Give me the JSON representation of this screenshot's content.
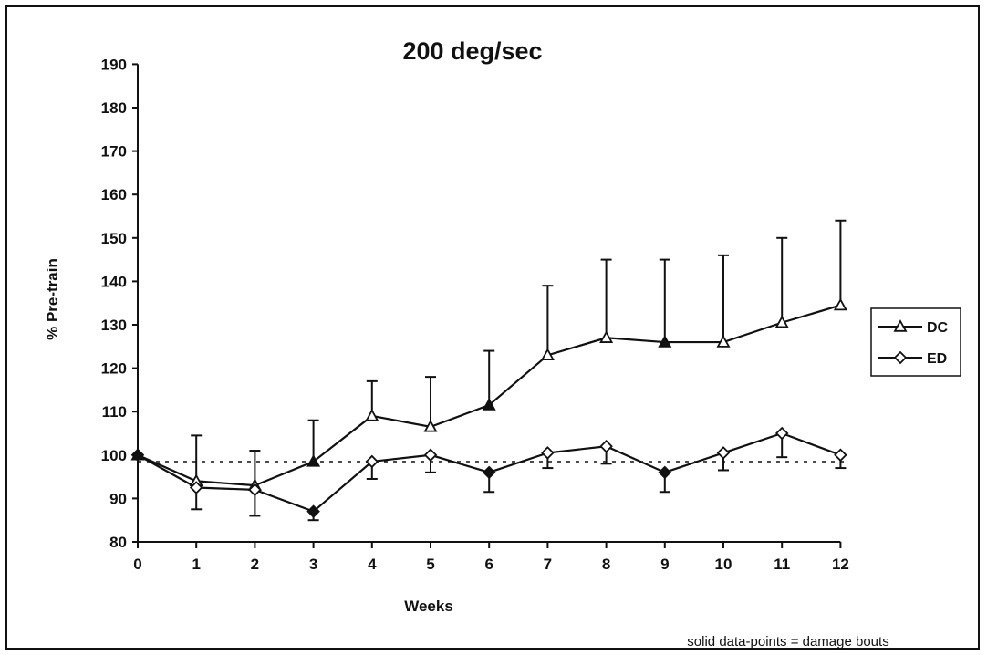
{
  "chart_data": {
    "type": "line",
    "title": "200 deg/sec",
    "xlabel": "Weeks",
    "ylabel": "% Pre-train",
    "x": [
      0,
      1,
      2,
      3,
      4,
      5,
      6,
      7,
      8,
      9,
      10,
      11,
      12
    ],
    "xlim": [
      0,
      12
    ],
    "ylim": [
      80,
      190
    ],
    "yticks": [
      80,
      90,
      100,
      110,
      120,
      130,
      140,
      150,
      160,
      170,
      180,
      190
    ],
    "reference_line": {
      "y": 98.5,
      "style": "dashed"
    },
    "grid": false,
    "legend_position": "right",
    "series": [
      {
        "name": "DC",
        "marker": "triangle",
        "values": [
          100,
          94,
          93,
          98.5,
          109,
          106.5,
          111.5,
          123,
          127,
          126,
          126,
          130.5,
          134.5
        ],
        "error_upper": [
          100,
          104.5,
          101,
          108,
          117,
          118,
          124,
          139,
          145,
          145,
          146,
          150,
          154
        ],
        "solid": [
          true,
          false,
          false,
          true,
          false,
          false,
          true,
          false,
          false,
          true,
          false,
          false,
          false
        ]
      },
      {
        "name": "ED",
        "marker": "diamond",
        "values": [
          100,
          92.5,
          92,
          87,
          98.5,
          100,
          96,
          100.5,
          102,
          96,
          100.5,
          105,
          100
        ],
        "error_lower": [
          100,
          87.5,
          86,
          85,
          94.5,
          96,
          91.5,
          97,
          98,
          91.5,
          96.5,
          99.5,
          97
        ],
        "solid": [
          true,
          false,
          false,
          true,
          false,
          false,
          true,
          false,
          false,
          true,
          false,
          false,
          false
        ]
      }
    ],
    "annotation": "solid data-points = damage bouts"
  }
}
